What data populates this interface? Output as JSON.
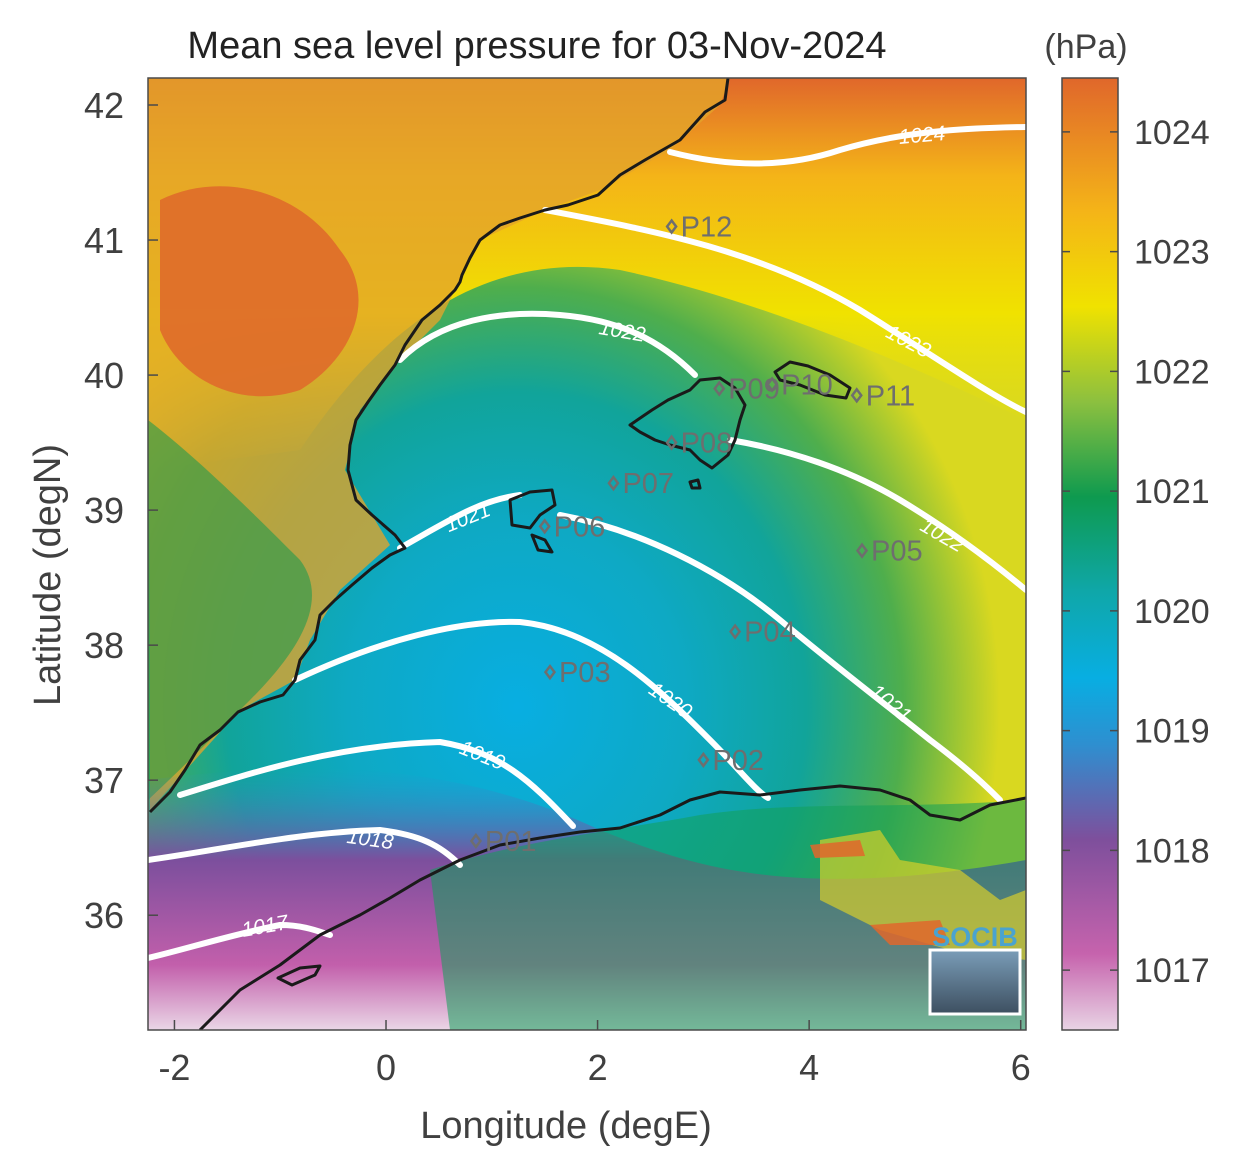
{
  "title": "Mean sea level pressure for 03-Nov-2024",
  "units": "(hPa)",
  "x_axis": {
    "label": "Longitude (degE)",
    "ticks": [
      "-2",
      "0",
      "2",
      "4",
      "6"
    ],
    "tick_values": [
      -2,
      0,
      2,
      4,
      6
    ],
    "range": [
      -2.25,
      6.05
    ]
  },
  "y_axis": {
    "label": "Latitude (degN)",
    "ticks": [
      "42",
      "41",
      "40",
      "39",
      "38",
      "37",
      "36"
    ],
    "tick_values": [
      42,
      41,
      40,
      39,
      38,
      37,
      36
    ],
    "range": [
      35.15,
      42.2
    ]
  },
  "colorbar": {
    "ticks": [
      "1024",
      "1023",
      "1022",
      "1021",
      "1020",
      "1019",
      "1018",
      "1017"
    ],
    "tick_values": [
      1024,
      1023,
      1022,
      1021,
      1020,
      1019,
      1018,
      1017
    ],
    "range": [
      1016.5,
      1024.45
    ],
    "colors": [
      "#e5cce0",
      "#c562ad",
      "#7b4f9d",
      "#0aa9de",
      "#12a5a8",
      "#0e9a4f",
      "#9ec43c",
      "#f1e300",
      "#f4b418",
      "#e06a2a"
    ]
  },
  "contours": [
    {
      "level": "1017",
      "label": "1017"
    },
    {
      "level": "1018",
      "label": "1018"
    },
    {
      "level": "1019",
      "label": "1019"
    },
    {
      "level": "1020",
      "label": "1020"
    },
    {
      "level": "1021",
      "label": "1021"
    },
    {
      "level": "1022",
      "label": "1022"
    },
    {
      "level": "1023",
      "label": "1023"
    },
    {
      "level": "1024",
      "label": "1024"
    }
  ],
  "stations": [
    {
      "id": "P01",
      "lon": 0.85,
      "lat": 36.55
    },
    {
      "id": "P02",
      "lon": 3.0,
      "lat": 37.15
    },
    {
      "id": "P03",
      "lon": 1.55,
      "lat": 37.8
    },
    {
      "id": "P04",
      "lon": 3.3,
      "lat": 38.1
    },
    {
      "id": "P05",
      "lon": 4.5,
      "lat": 38.7
    },
    {
      "id": "P06",
      "lon": 1.5,
      "lat": 38.88
    },
    {
      "id": "P07",
      "lon": 2.15,
      "lat": 39.2
    },
    {
      "id": "P08",
      "lon": 2.7,
      "lat": 39.5
    },
    {
      "id": "P09",
      "lon": 3.15,
      "lat": 39.9
    },
    {
      "id": "P10",
      "lon": 3.65,
      "lat": 39.93
    },
    {
      "id": "P11",
      "lon": 4.45,
      "lat": 39.85
    },
    {
      "id": "P12",
      "lon": 2.7,
      "lat": 41.1
    }
  ],
  "logo": {
    "text": "SOCIB"
  }
}
